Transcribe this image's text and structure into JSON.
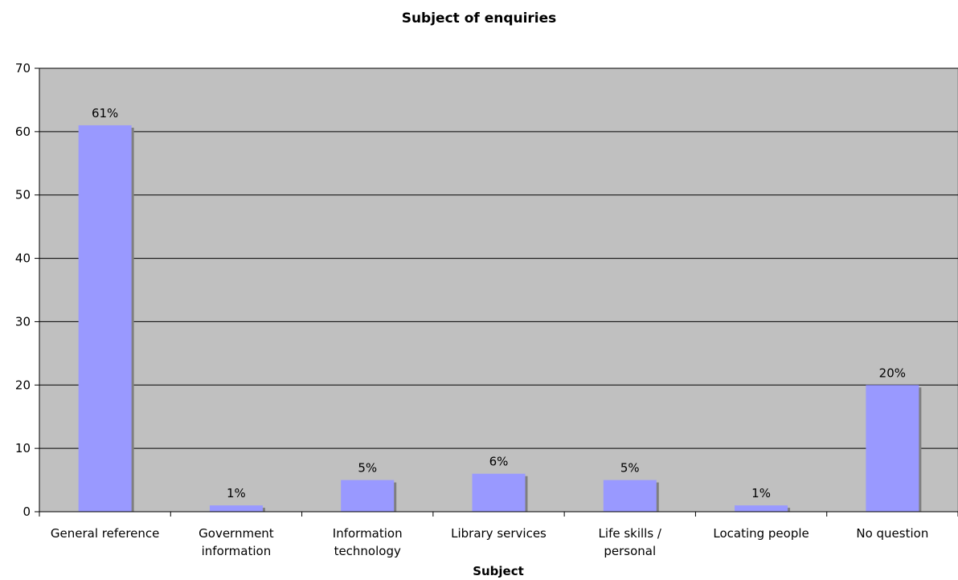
{
  "chart_data": {
    "type": "bar",
    "title": "Subject of enquiries",
    "xlabel": "Subject",
    "ylabel": "",
    "categories": [
      [
        "General reference"
      ],
      [
        "Government",
        "information"
      ],
      [
        "Information",
        "technology"
      ],
      [
        "Library services"
      ],
      [
        "Life skills /",
        "personal"
      ],
      [
        "Locating people"
      ],
      [
        "No question"
      ]
    ],
    "values": [
      61,
      1,
      5,
      6,
      5,
      1,
      20
    ],
    "data_labels": [
      "61%",
      "1%",
      "5%",
      "6%",
      "5%",
      "1%",
      "20%"
    ],
    "ylim": [
      0,
      70
    ],
    "yticks": [
      0,
      10,
      20,
      30,
      40,
      50,
      60,
      70
    ],
    "grid": true,
    "legend": "none",
    "colors": {
      "bar": "#9999ff",
      "bar_shadow": "#7f7f7f",
      "plot_background": "#c0c0c0",
      "gridline": "#000000"
    }
  }
}
